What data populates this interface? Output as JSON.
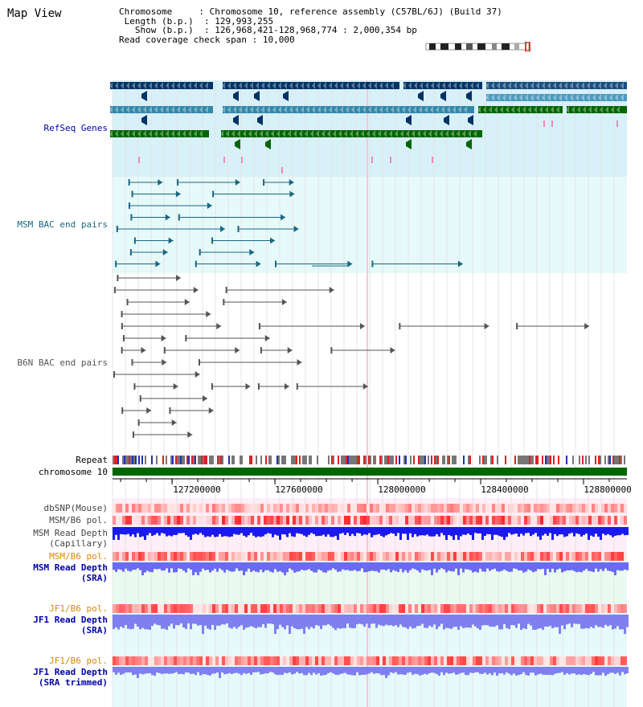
{
  "title": "Map View",
  "info": {
    "chromosome_label": "Chromosome",
    "chromosome_value": "Chromosome 10, reference assembly (C57BL/6J) (Build 37)",
    "length_label": "Length (b.p.)",
    "length_value": "129,993,255",
    "show_label": "Show (b.p.)",
    "show_value": "126,968,421-128,968,774 : 2,000,354 bp",
    "coverage_label": "Read coverage check span",
    "coverage_value": "10,000"
  },
  "tracks": {
    "refseq": "RefSeq Genes",
    "msm_bac": "MSM BAC end pairs",
    "b6n_bac": "B6N BAC end pairs",
    "repeat": "Repeat",
    "chromosome": "chromosome 10",
    "dbsnp": "dbSNP(Mouse)",
    "msm_b6_pol_1": "MSM/B6 pol.",
    "msm_depth_cap_1": "MSM Read Depth",
    "msm_depth_cap_2": "(Capillary)",
    "msm_b6_pol_2": "MSM/B6 pol.",
    "msm_depth_sra_1": "MSM Read Depth",
    "msm_depth_sra_2": "(SRA)",
    "jf1_b6_pol_1": "JF1/B6 pol.",
    "jf1_depth_sra_1": "JF1 Read Depth",
    "jf1_depth_sra_2": "(SRA)",
    "jf1_b6_pol_2": "JF1/B6 pol.",
    "jf1_depth_trim_1": "JF1 Read Depth",
    "jf1_depth_trim_2": "(SRA trimmed)"
  },
  "scale": {
    "labels": [
      "127200000",
      "127600000",
      "128000000",
      "128400000",
      "128800000"
    ],
    "positions_bp": [
      127200000,
      127600000,
      128000000,
      128400000,
      128800000
    ],
    "start_bp": 126968421,
    "end_bp": 128968774
  },
  "colors": {
    "refseq_dark": "#003366",
    "refseq_mid": "#3388aa",
    "refseq_green": "#006600",
    "msm_line": "#1a6680",
    "b6n_line": "#555555",
    "depth_blue": "#1a1aee",
    "depth_light": "#7f7ff0",
    "pol_red": "#e01010",
    "label_blue": "#0000aa",
    "label_orange": "#dd8800"
  }
}
